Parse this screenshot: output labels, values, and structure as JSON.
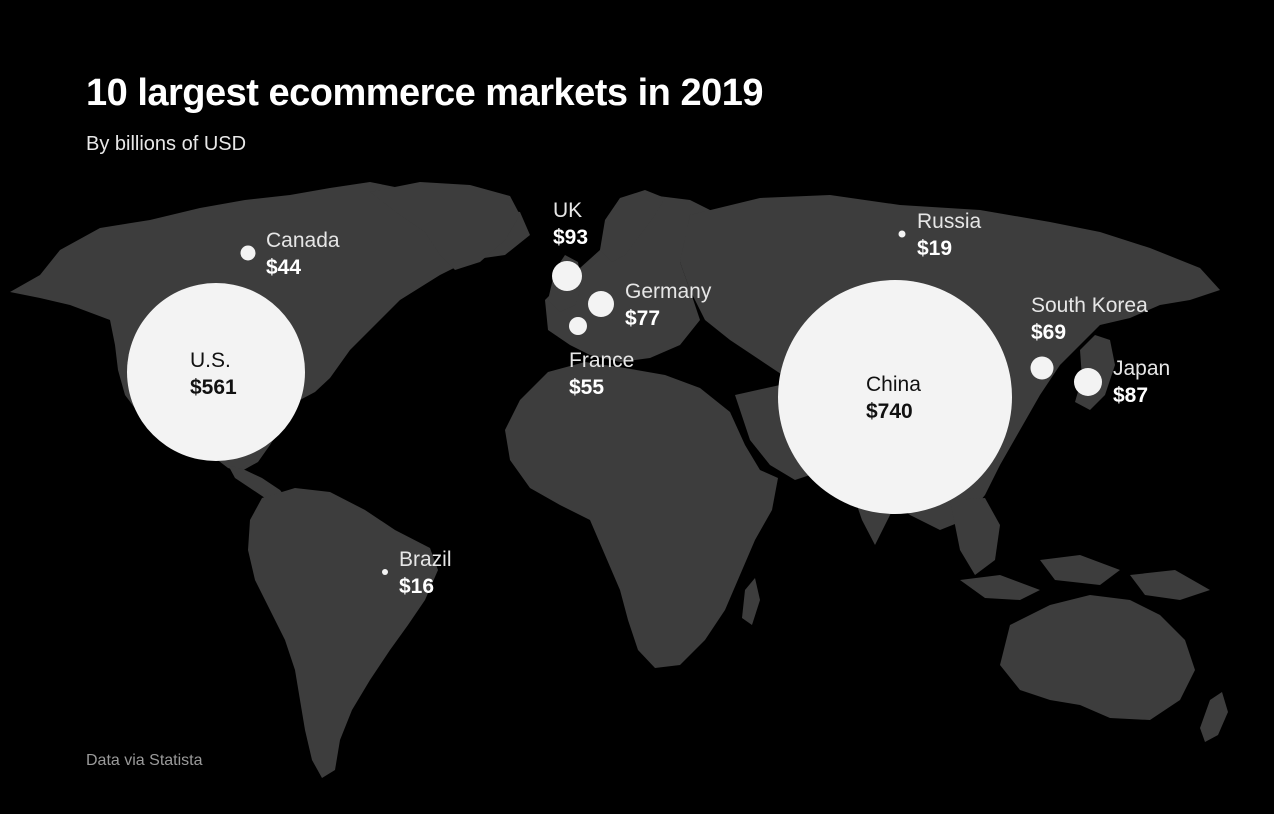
{
  "title": "10 largest ecommerce markets in 2019",
  "subtitle": "By billions of USD",
  "source": "Data via Statista",
  "colors": {
    "background": "#000000",
    "land": "#3d3d3d",
    "bubble": "#f3f3f3",
    "text_light": "#ffffff",
    "text_dark": "#111111"
  },
  "markets": [
    {
      "key": "us",
      "name": "U.S.",
      "value_label": "$561",
      "value": 561
    },
    {
      "key": "china",
      "name": "China",
      "value_label": "$740",
      "value": 740
    },
    {
      "key": "canada",
      "name": "Canada",
      "value_label": "$44",
      "value": 44
    },
    {
      "key": "uk",
      "name": "UK",
      "value_label": "$93",
      "value": 93
    },
    {
      "key": "germany",
      "name": "Germany",
      "value_label": "$77",
      "value": 77
    },
    {
      "key": "france",
      "name": "France",
      "value_label": "$55",
      "value": 55
    },
    {
      "key": "russia",
      "name": "Russia",
      "value_label": "$19",
      "value": 19
    },
    {
      "key": "south_korea",
      "name": "South Korea",
      "value_label": "$69",
      "value": 69
    },
    {
      "key": "japan",
      "name": "Japan",
      "value_label": "$87",
      "value": 87
    },
    {
      "key": "brazil",
      "name": "Brazil",
      "value_label": "$16",
      "value": 16
    }
  ]
}
